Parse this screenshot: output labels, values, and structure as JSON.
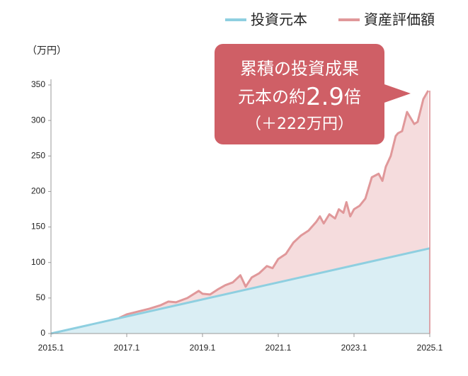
{
  "chart_data": {
    "type": "line",
    "y_label": "（万円）",
    "series": [
      {
        "name": "投資元本",
        "color": "#8ecfe0",
        "fill": "#daeef4",
        "x": [
          2015,
          2025
        ],
        "values": [
          0,
          120
        ]
      },
      {
        "name": "資産評価額",
        "color": "#e0989a",
        "fill": "#f5dcdd",
        "x": [
          2016.8,
          2017,
          2017.3,
          2017.6,
          2017.9,
          2018.1,
          2018.3,
          2018.6,
          2018.9,
          2019.0,
          2019.2,
          2019.4,
          2019.6,
          2019.8,
          2020.0,
          2020.14,
          2020.3,
          2020.5,
          2020.7,
          2020.85,
          2021.0,
          2021.2,
          2021.4,
          2021.6,
          2021.8,
          2022.0,
          2022.1,
          2022.2,
          2022.35,
          2022.5,
          2022.6,
          2022.72,
          2022.8,
          2022.9,
          2023.0,
          2023.15,
          2023.3,
          2023.47,
          2023.65,
          2023.75,
          2023.84,
          2023.97,
          2024.1,
          2024.16,
          2024.27,
          2024.4,
          2024.59,
          2024.68,
          2024.83,
          2024.96
        ],
        "values": [
          22,
          27,
          31,
          35,
          40,
          45,
          44,
          50,
          60,
          56,
          55,
          62,
          68,
          72,
          82,
          66,
          79,
          85,
          95,
          92,
          105,
          112,
          128,
          138,
          145,
          157,
          165,
          155,
          168,
          162,
          175,
          170,
          185,
          165,
          175,
          180,
          190,
          220,
          225,
          215,
          235,
          250,
          278,
          282,
          285,
          312,
          295,
          298,
          330,
          342
        ]
      }
    ],
    "xlim": [
      2015,
      2025
    ],
    "ylim": [
      0,
      350
    ],
    "xticks": [
      {
        "value": 2015,
        "label": "2015.1"
      },
      {
        "value": 2017,
        "label": "2017.1"
      },
      {
        "value": 2019,
        "label": "2019.1"
      },
      {
        "value": 2021,
        "label": "2021.1"
      },
      {
        "value": 2023,
        "label": "2023.1"
      },
      {
        "value": 2025,
        "label": "2025.1"
      }
    ],
    "yticks": [
      0,
      50,
      100,
      150,
      200,
      250,
      300,
      350
    ],
    "annotation": {
      "color": "#cf5f66",
      "line1": "累積の投資成果",
      "line2_pre": "元本の約",
      "line2_big": "2.9",
      "line2_post": "倍",
      "line3": "（＋222万円）"
    }
  }
}
